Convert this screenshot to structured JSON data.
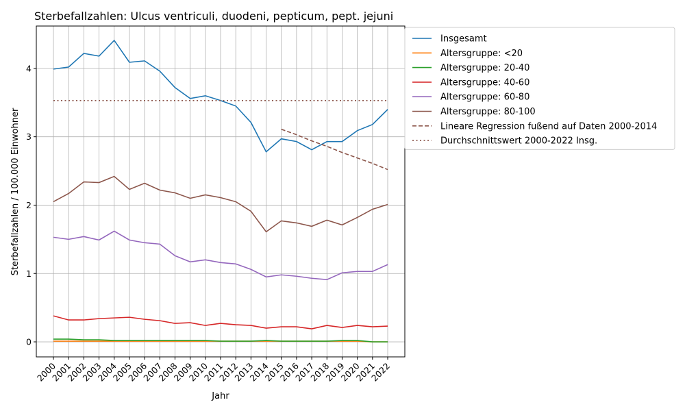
{
  "chart_data": {
    "type": "line",
    "title": "Sterbefallzahlen: Ulcus ventriculi, duodeni, pepticum, pept. jejuni",
    "x_label": "Jahr",
    "y_label": "Sterbefallzahlen / 100.000 Einwohner",
    "categories": [
      "2000",
      "2001",
      "2002",
      "2003",
      "2004",
      "2005",
      "2006",
      "2007",
      "2008",
      "2009",
      "2010",
      "2011",
      "2012",
      "2013",
      "2014",
      "2015",
      "2016",
      "2017",
      "2018",
      "2019",
      "2020",
      "2021",
      "2022"
    ],
    "ylim": [
      -0.22,
      4.62
    ],
    "yticks": [
      0,
      1,
      2,
      3,
      4
    ],
    "grid": true,
    "legend": "outside-upper-right",
    "series": [
      {
        "name": "Insgesamt",
        "color": "#1f77b4",
        "linestyle": "solid",
        "values": [
          3.99,
          4.02,
          4.22,
          4.18,
          4.41,
          4.09,
          4.11,
          3.96,
          3.72,
          3.56,
          3.6,
          3.53,
          3.45,
          3.21,
          2.78,
          2.97,
          2.93,
          2.81,
          2.93,
          2.93,
          3.09,
          3.18,
          3.4
        ]
      },
      {
        "name": "Altersgruppe: <20",
        "color": "#ff7f0e",
        "linestyle": "solid",
        "values": [
          0.01,
          0.01,
          0.01,
          0.01,
          0.01,
          0.01,
          0.01,
          0.01,
          0.01,
          0.01,
          0.01,
          0.01,
          0.01,
          0.01,
          0.01,
          0.01,
          0.01,
          0.01,
          0.01,
          0.01,
          0.01,
          0.0,
          0.0
        ]
      },
      {
        "name": "Altersgruppe: 20-40",
        "color": "#2ca02c",
        "linestyle": "solid",
        "values": [
          0.04,
          0.04,
          0.03,
          0.03,
          0.02,
          0.02,
          0.02,
          0.02,
          0.02,
          0.02,
          0.02,
          0.01,
          0.01,
          0.01,
          0.02,
          0.01,
          0.01,
          0.01,
          0.01,
          0.02,
          0.02,
          0.0,
          0.0
        ]
      },
      {
        "name": "Altersgruppe: 40-60",
        "color": "#d62728",
        "linestyle": "solid",
        "values": [
          0.38,
          0.32,
          0.32,
          0.34,
          0.35,
          0.36,
          0.33,
          0.31,
          0.27,
          0.28,
          0.24,
          0.27,
          0.25,
          0.24,
          0.2,
          0.22,
          0.22,
          0.19,
          0.24,
          0.21,
          0.24,
          0.22,
          0.23
        ]
      },
      {
        "name": "Altersgruppe: 60-80",
        "color": "#9467bd",
        "linestyle": "solid",
        "values": [
          1.53,
          1.5,
          1.54,
          1.49,
          1.62,
          1.49,
          1.45,
          1.43,
          1.26,
          1.17,
          1.2,
          1.16,
          1.14,
          1.06,
          0.95,
          0.98,
          0.96,
          0.93,
          0.91,
          1.01,
          1.03,
          1.03,
          1.13
        ]
      },
      {
        "name": "Altersgruppe: 80-100",
        "color": "#8c564b",
        "linestyle": "solid",
        "values": [
          2.05,
          2.17,
          2.34,
          2.33,
          2.42,
          2.23,
          2.32,
          2.22,
          2.18,
          2.1,
          2.15,
          2.11,
          2.05,
          1.91,
          1.61,
          1.77,
          1.74,
          1.69,
          1.78,
          1.71,
          1.82,
          1.94,
          2.01
        ]
      },
      {
        "name": "Lineare Regression fußend auf Daten 2000-2014",
        "color": "#8c564b",
        "linestyle": "dashed",
        "values": [
          null,
          null,
          null,
          null,
          null,
          null,
          null,
          null,
          null,
          null,
          null,
          null,
          null,
          null,
          null,
          3.11,
          3.03,
          2.94,
          2.86,
          2.77,
          2.69,
          2.61,
          2.52
        ]
      },
      {
        "name": "Durchschnittswert 2000-2022 Insg.",
        "color": "#8c564b",
        "linestyle": "dotted",
        "values": [
          3.53,
          3.53,
          3.53,
          3.53,
          3.53,
          3.53,
          3.53,
          3.53,
          3.53,
          3.53,
          3.53,
          3.53,
          3.53,
          3.53,
          3.53,
          3.53,
          3.53,
          3.53,
          3.53,
          3.53,
          3.53,
          3.53,
          3.53
        ]
      }
    ]
  }
}
